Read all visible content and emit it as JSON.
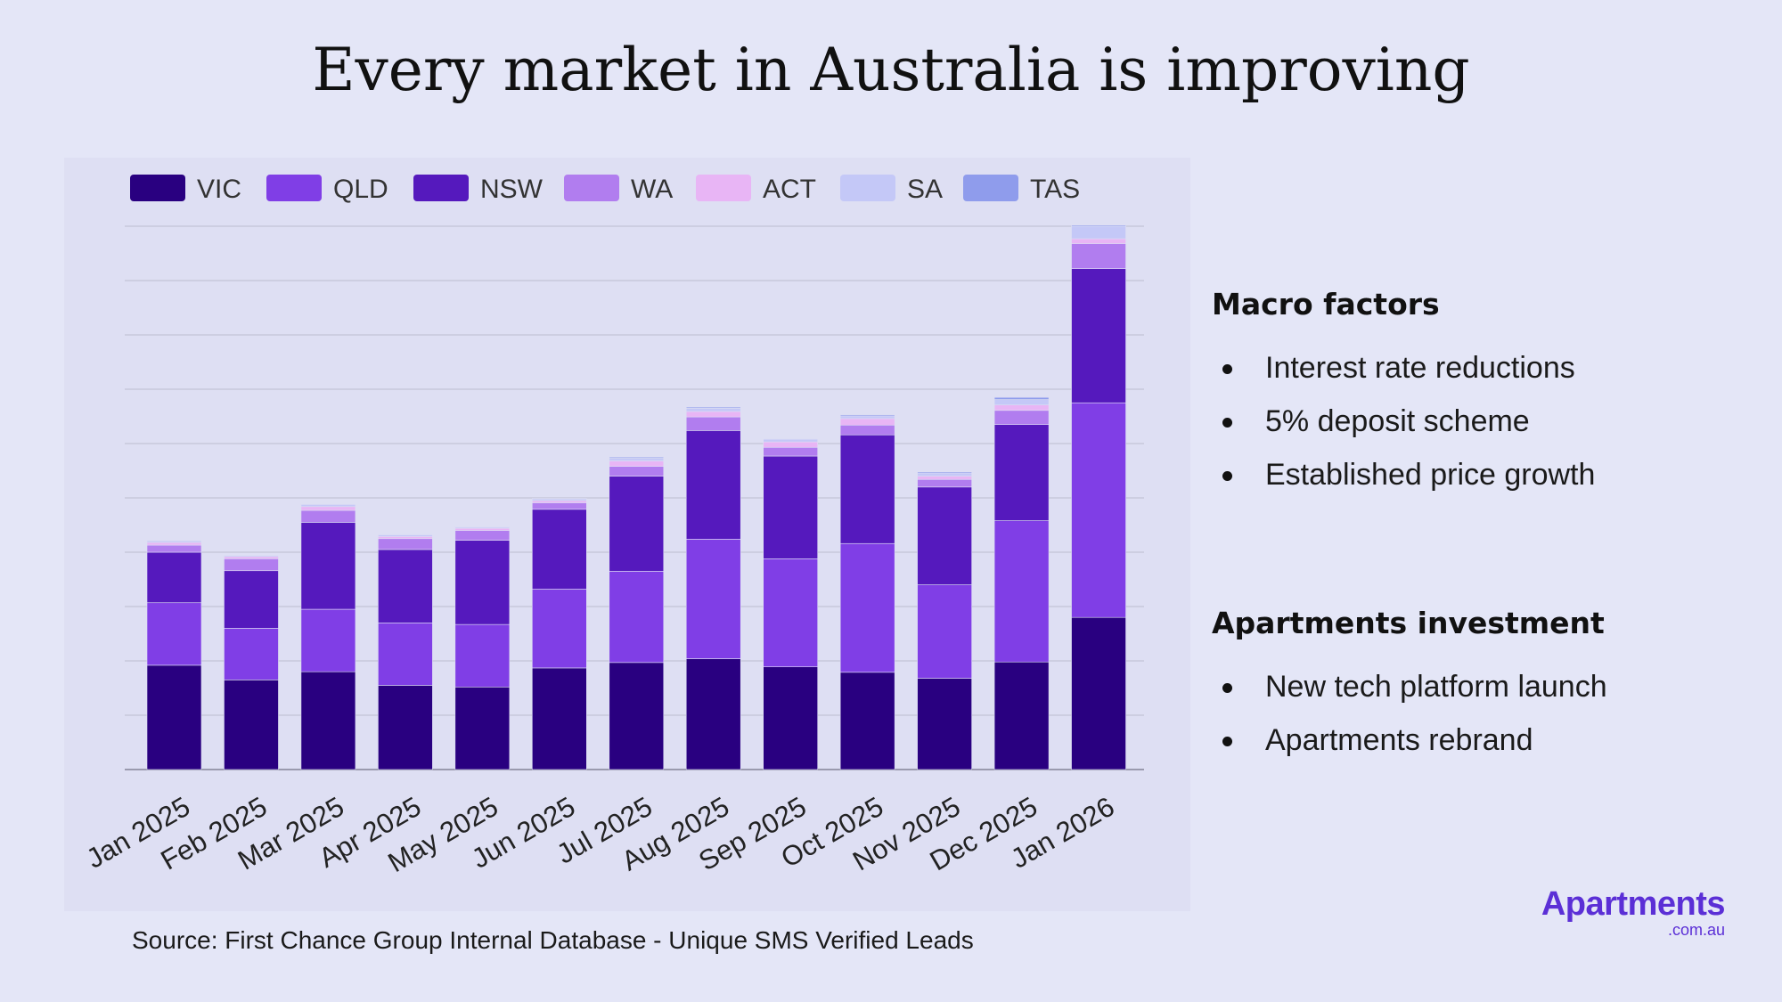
{
  "title": "Every market in Australia is improving",
  "chart_data": {
    "type": "bar",
    "stacked": true,
    "categories": [
      "Jan 2025",
      "Feb 2025",
      "Mar 2025",
      "Apr 2025",
      "May 2025",
      "Jun 2025",
      "Jul 2025",
      "Aug 2025",
      "Sep 2025",
      "Oct 2025",
      "Nov 2025",
      "Dec 2025",
      "Jan 2026"
    ],
    "series": [
      {
        "name": "VIC",
        "color": "#290080",
        "values": [
          1.92,
          1.65,
          1.8,
          1.55,
          1.52,
          1.87,
          1.97,
          2.04,
          1.89,
          1.79,
          1.68,
          1.98,
          2.8
        ]
      },
      {
        "name": "QLD",
        "color": "#803ee6",
        "values": [
          1.15,
          0.95,
          1.15,
          1.15,
          1.15,
          1.45,
          1.68,
          2.2,
          1.99,
          2.37,
          1.72,
          2.6,
          3.95
        ]
      },
      {
        "name": "NSW",
        "color": "#5519bd",
        "values": [
          0.93,
          1.06,
          1.6,
          1.35,
          1.55,
          1.47,
          1.75,
          2.0,
          1.89,
          2.0,
          1.8,
          1.77,
          2.47
        ]
      },
      {
        "name": "WA",
        "color": "#b17def",
        "values": [
          0.13,
          0.22,
          0.22,
          0.2,
          0.18,
          0.12,
          0.18,
          0.25,
          0.16,
          0.18,
          0.14,
          0.26,
          0.46
        ]
      },
      {
        "name": "ACT",
        "color": "#e8b5f5",
        "values": [
          0.05,
          0.04,
          0.07,
          0.04,
          0.04,
          0.04,
          0.1,
          0.1,
          0.1,
          0.12,
          0.06,
          0.1,
          0.09
        ]
      },
      {
        "name": "SA",
        "color": "#c4c8f7",
        "values": [
          0.03,
          0.02,
          0.04,
          0.03,
          0.02,
          0.03,
          0.05,
          0.06,
          0.05,
          0.05,
          0.06,
          0.1,
          0.23
        ]
      },
      {
        "name": "TAS",
        "color": "#8f9cec",
        "values": [
          0.01,
          0.01,
          0.01,
          0.01,
          0.01,
          0.01,
          0.02,
          0.02,
          0.01,
          0.02,
          0.02,
          0.04,
          0.02
        ]
      }
    ],
    "ylim": [
      0,
      10
    ],
    "gridlines": 10,
    "legend": "top-left",
    "y_tick_labels_shown": false
  },
  "sections": [
    {
      "heading": "Macro factors",
      "items": [
        "Interest rate reductions",
        "5% deposit scheme",
        "Established price growth"
      ]
    },
    {
      "heading": "Apartments investment",
      "items": [
        "New tech platform launch",
        "Apartments rebrand"
      ]
    }
  ],
  "source": "Source: First Chance Group Internal Database - Unique SMS Verified Leads",
  "logo": {
    "main": "Apartments",
    "sub": ".com.au"
  }
}
